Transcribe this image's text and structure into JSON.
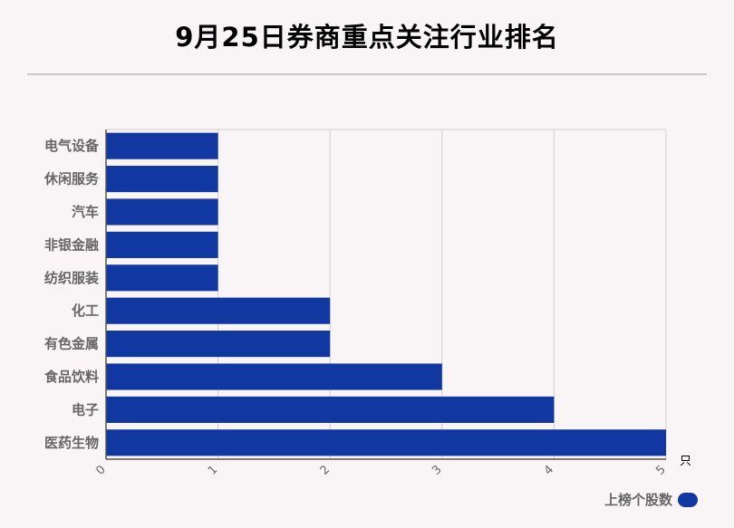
{
  "chart_data": {
    "type": "bar",
    "orientation": "horizontal",
    "title": "9月25日券商重点关注行业排名",
    "categories": [
      "电气设备",
      "休闲服务",
      "汽车",
      "非银金融",
      "纺织服装",
      "化工",
      "有色金属",
      "食品饮料",
      "电子",
      "医药生物"
    ],
    "series": [
      {
        "name": "上榜个股数",
        "values": [
          1,
          1,
          1,
          1,
          1,
          2,
          2,
          3,
          4,
          5
        ]
      }
    ],
    "xlim": [
      0,
      5
    ],
    "xticks": [
      "0",
      "1",
      "2",
      "3",
      "4",
      "5"
    ],
    "xunit": "只",
    "grid": true,
    "legend_position": "bottom-right",
    "bar_color": "#1137a1"
  }
}
